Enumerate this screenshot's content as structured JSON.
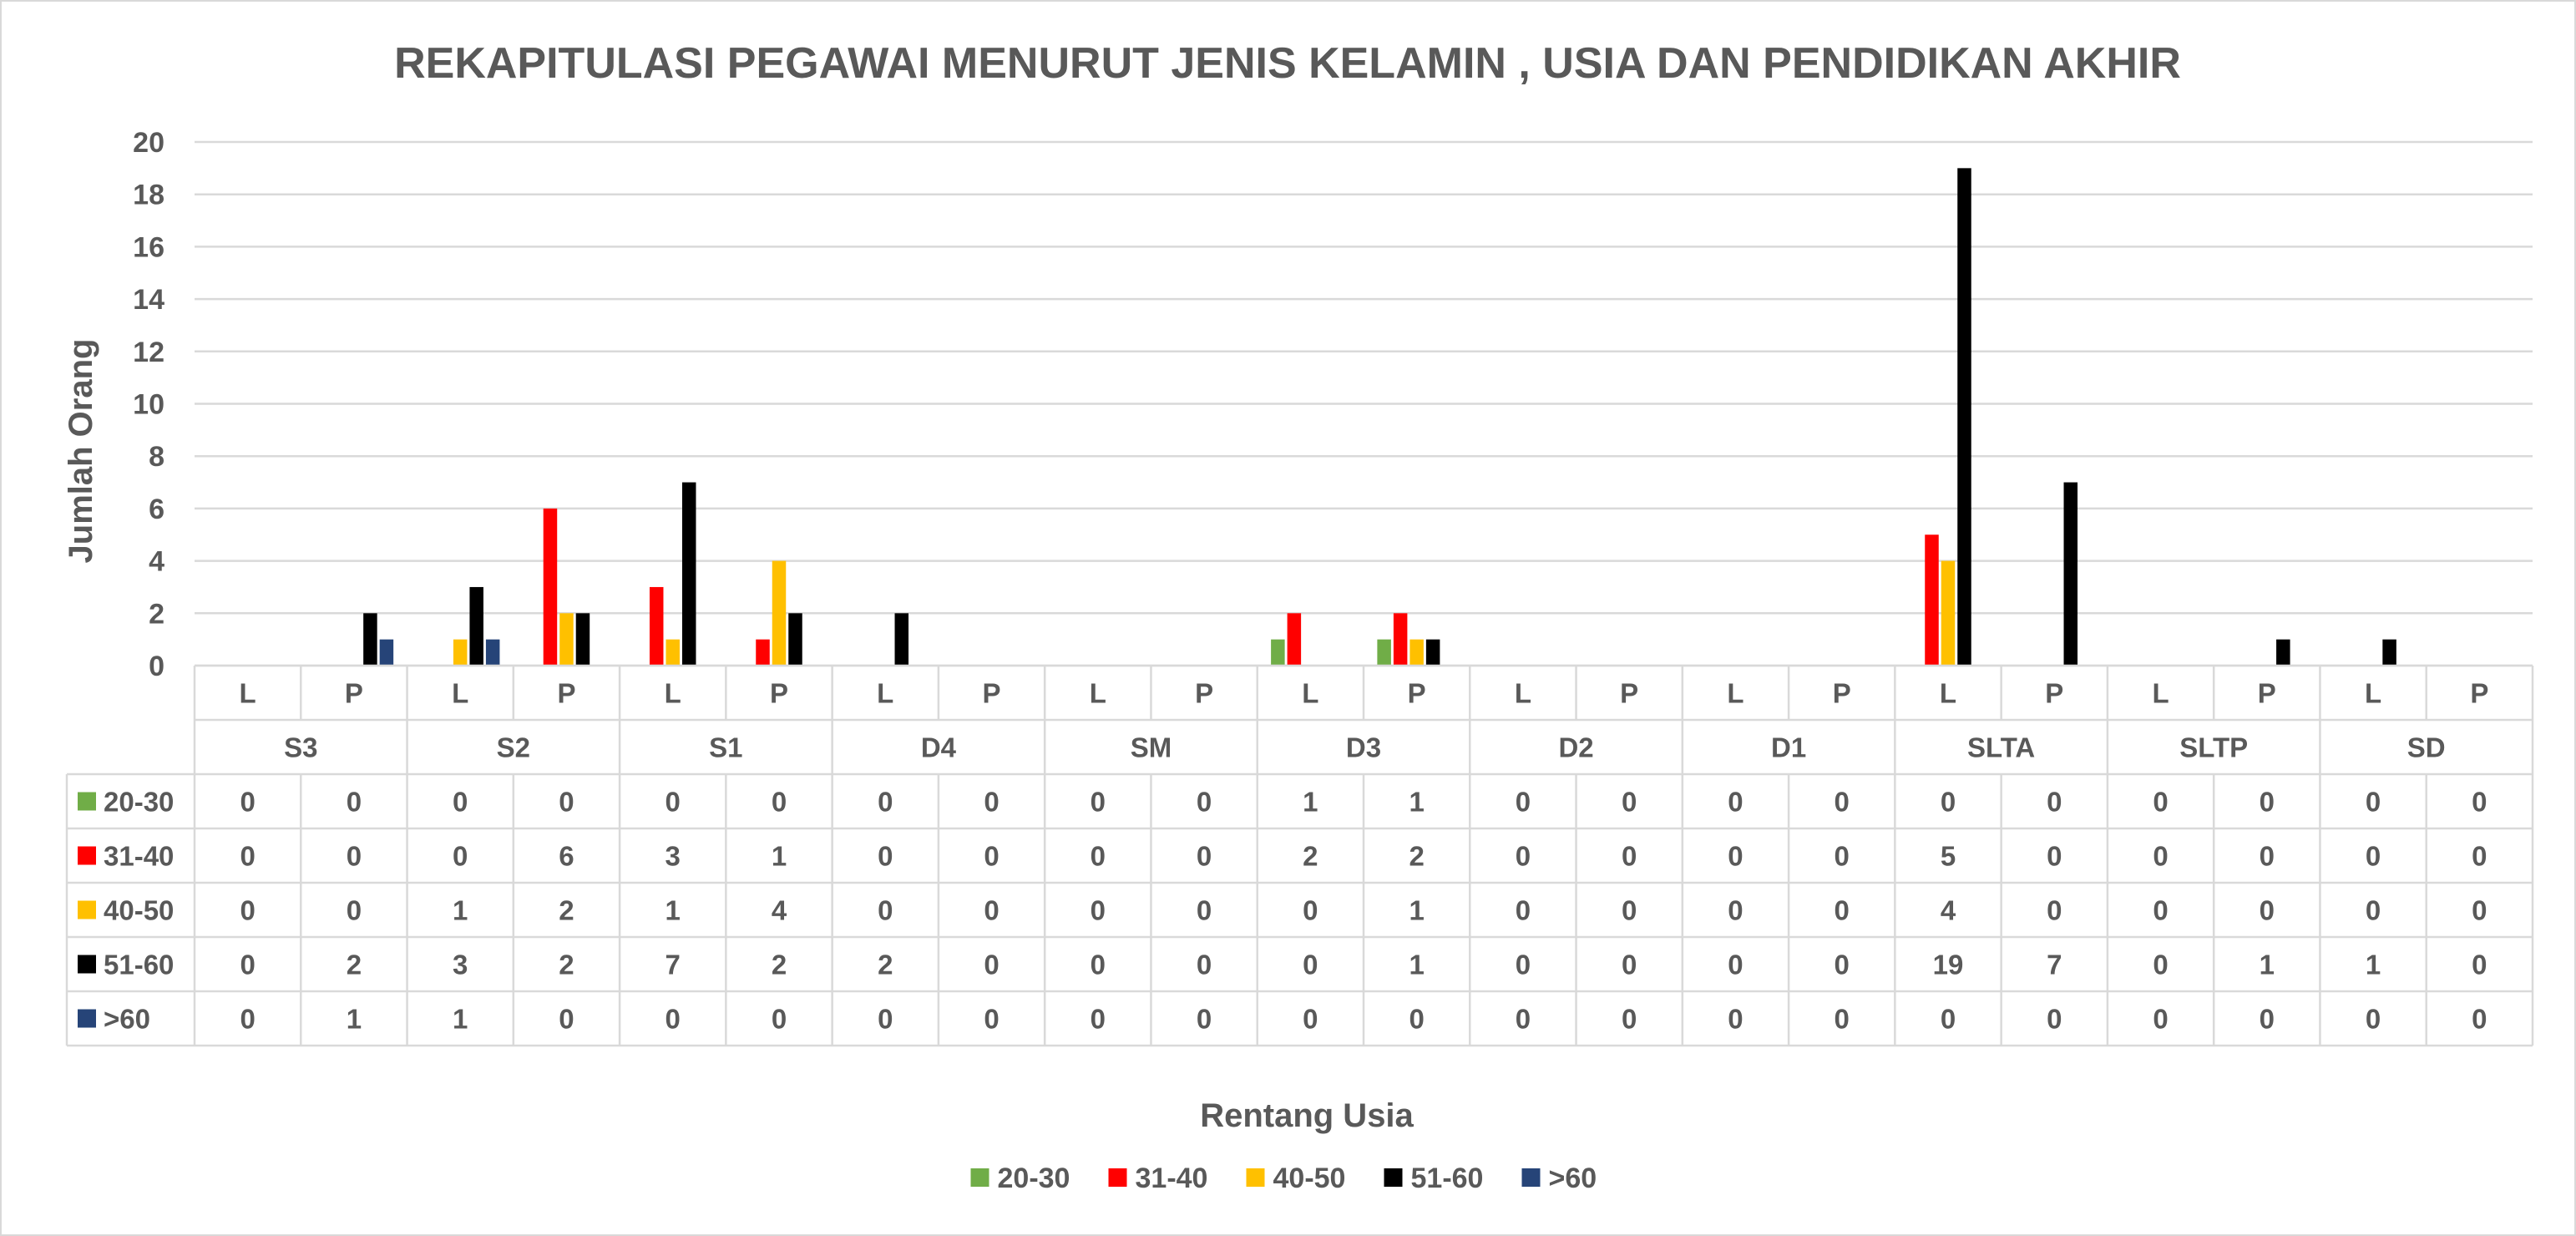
{
  "chart_data": {
    "type": "bar",
    "title": "REKAPITULASI PEGAWAI MENURUT JENIS KELAMIN , USIA DAN PENDIDIKAN AKHIR",
    "xlabel": "Rentang Usia",
    "ylabel": "Jumlah Orang",
    "ylim": [
      0,
      20
    ],
    "yticks": [
      "0",
      "2",
      "4",
      "6",
      "8",
      "10",
      "12",
      "14",
      "16",
      "18",
      "20"
    ],
    "grid": true,
    "legend_position": "bottom",
    "groups": [
      "S3",
      "S2",
      "S1",
      "D4",
      "SM",
      "D3",
      "D2",
      "D1",
      "SLTA",
      "SLTP",
      "SD"
    ],
    "subcategories": [
      "L",
      "P"
    ],
    "series": [
      {
        "name": "20-30",
        "color": "#70ad47",
        "values": [
          0,
          0,
          0,
          0,
          0,
          0,
          0,
          0,
          0,
          0,
          1,
          1,
          0,
          0,
          0,
          0,
          0,
          0,
          0,
          0,
          0,
          0
        ]
      },
      {
        "name": "31-40",
        "color": "#ff0000",
        "values": [
          0,
          0,
          0,
          6,
          3,
          1,
          0,
          0,
          0,
          0,
          2,
          2,
          0,
          0,
          0,
          0,
          5,
          0,
          0,
          0,
          0,
          0
        ]
      },
      {
        "name": "40-50",
        "color": "#ffc000",
        "values": [
          0,
          0,
          1,
          2,
          1,
          4,
          0,
          0,
          0,
          0,
          0,
          1,
          0,
          0,
          0,
          0,
          4,
          0,
          0,
          0,
          0,
          0
        ]
      },
      {
        "name": "51-60",
        "color": "#000000",
        "values": [
          0,
          2,
          3,
          2,
          7,
          2,
          2,
          0,
          0,
          0,
          0,
          1,
          0,
          0,
          0,
          0,
          19,
          7,
          0,
          1,
          1,
          0
        ]
      },
      {
        "name": ">60",
        "color": "#264478",
        "values": [
          0,
          1,
          1,
          0,
          0,
          0,
          0,
          0,
          0,
          0,
          0,
          0,
          0,
          0,
          0,
          0,
          0,
          0,
          0,
          0,
          0,
          0
        ]
      }
    ]
  }
}
